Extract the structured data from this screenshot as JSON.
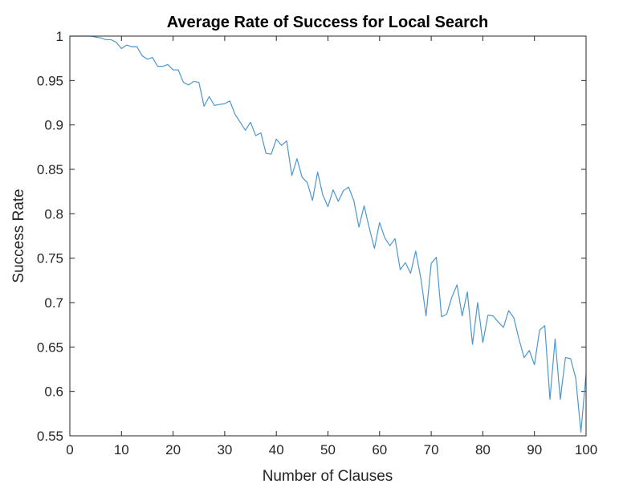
{
  "chart_data": {
    "type": "line",
    "title": "Average Rate of Success for Local Search",
    "xlabel": "Number of Clauses",
    "ylabel": "Success Rate",
    "xlim": [
      0,
      100
    ],
    "ylim": [
      0.55,
      1
    ],
    "xticks": [
      0,
      10,
      20,
      30,
      40,
      50,
      60,
      70,
      80,
      90,
      100
    ],
    "yticks": [
      0.55,
      0.6,
      0.65,
      0.7,
      0.75,
      0.8,
      0.85,
      0.9,
      0.95,
      1
    ],
    "ytick_labels": [
      "0.55",
      "0.6",
      "0.65",
      "0.7",
      "0.75",
      "0.8",
      "0.85",
      "0.9",
      "0.95",
      "1"
    ],
    "grid": false,
    "series": [
      {
        "color": "#4d97cc",
        "x": [
          0,
          1,
          2,
          3,
          4,
          5,
          6,
          7,
          8,
          9,
          10,
          11,
          12,
          13,
          14,
          15,
          16,
          17,
          18,
          19,
          20,
          21,
          22,
          23,
          24,
          25,
          26,
          27,
          28,
          29,
          30,
          31,
          32,
          33,
          34,
          35,
          36,
          37,
          38,
          39,
          40,
          41,
          42,
          43,
          44,
          45,
          46,
          47,
          48,
          49,
          50,
          51,
          52,
          53,
          54,
          55,
          56,
          57,
          58,
          59,
          60,
          61,
          62,
          63,
          64,
          65,
          66,
          67,
          68,
          69,
          70,
          71,
          72,
          73,
          74,
          75,
          76,
          77,
          78,
          79,
          80,
          81,
          82,
          83,
          84,
          85,
          86,
          87,
          88,
          89,
          90,
          91,
          92,
          93,
          94,
          95,
          96,
          97,
          98,
          99,
          100
        ],
        "y": [
          1.0,
          1.0,
          1.0,
          1.0,
          1.0,
          0.999,
          0.998,
          0.996,
          0.996,
          0.993,
          0.986,
          0.99,
          0.988,
          0.988,
          0.978,
          0.974,
          0.976,
          0.966,
          0.966,
          0.968,
          0.962,
          0.962,
          0.948,
          0.945,
          0.949,
          0.948,
          0.921,
          0.932,
          0.922,
          0.923,
          0.924,
          0.927,
          0.912,
          0.903,
          0.894,
          0.903,
          0.888,
          0.891,
          0.868,
          0.867,
          0.884,
          0.877,
          0.882,
          0.843,
          0.862,
          0.841,
          0.835,
          0.815,
          0.847,
          0.821,
          0.808,
          0.827,
          0.814,
          0.826,
          0.83,
          0.815,
          0.785,
          0.809,
          0.784,
          0.761,
          0.79,
          0.773,
          0.764,
          0.772,
          0.737,
          0.745,
          0.733,
          0.758,
          0.727,
          0.685,
          0.744,
          0.751,
          0.684,
          0.687,
          0.706,
          0.72,
          0.685,
          0.712,
          0.653,
          0.7,
          0.655,
          0.686,
          0.685,
          0.678,
          0.672,
          0.691,
          0.683,
          0.659,
          0.638,
          0.646,
          0.63,
          0.669,
          0.674,
          0.591,
          0.659,
          0.591,
          0.638,
          0.637,
          0.615,
          0.554,
          0.62
        ]
      }
    ]
  }
}
